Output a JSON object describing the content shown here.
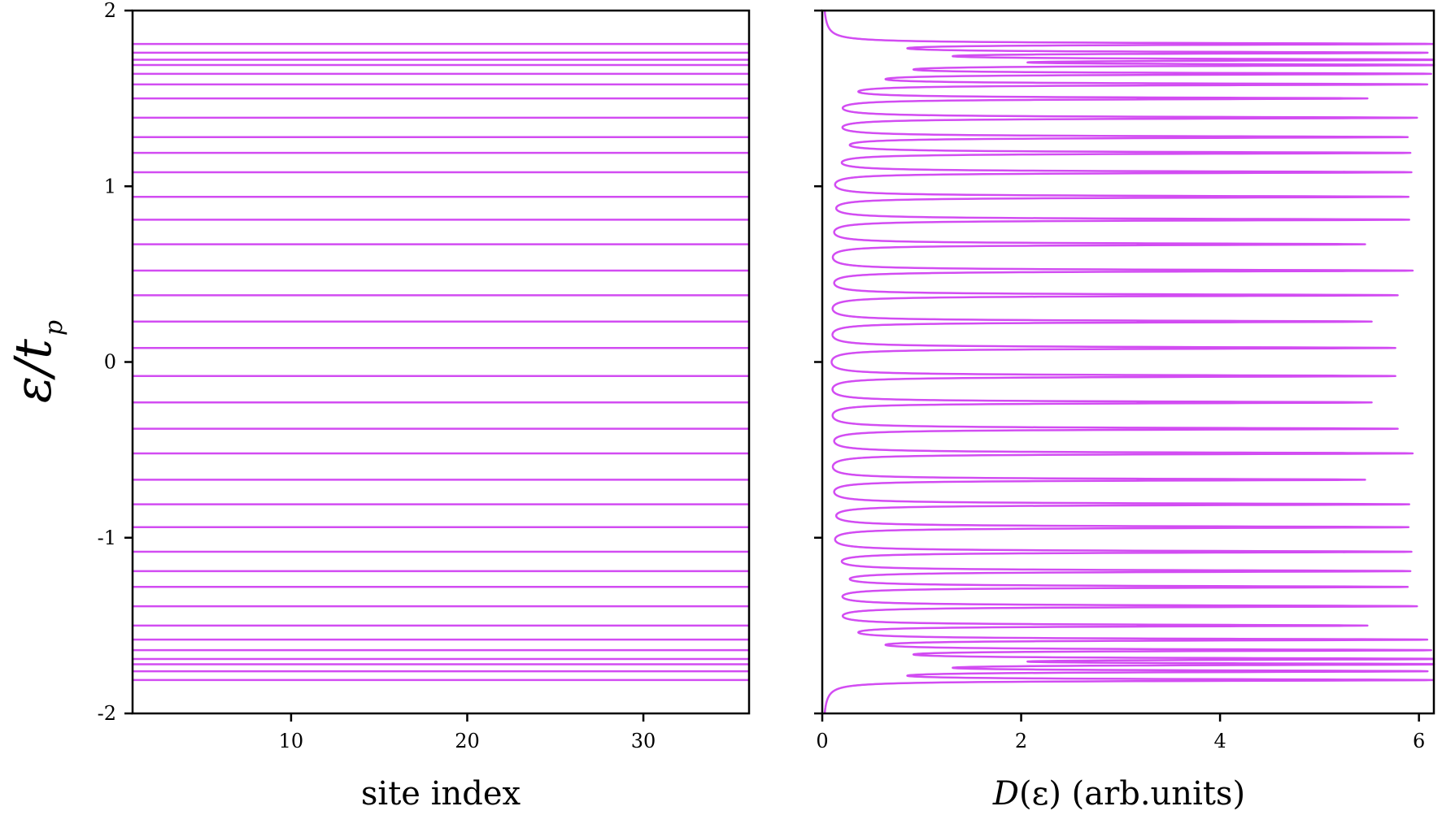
{
  "chart_data": [
    {
      "type": "line",
      "panel": "left",
      "xlabel": "site index",
      "ylabel_main": "ε/t",
      "ylabel_sub": "p",
      "xlim": [
        1,
        36
      ],
      "ylim": [
        -2,
        2
      ],
      "xticks": [
        "10",
        "20",
        "30"
      ],
      "xtick_values": [
        10,
        20,
        30
      ],
      "yticks": [
        "2",
        "1",
        "0",
        "-1",
        "-2"
      ],
      "ytick_values": [
        2,
        1,
        0,
        -1,
        -2
      ],
      "color": "#d24cf2",
      "energy_levels": [
        1.81,
        1.76,
        1.72,
        1.69,
        1.64,
        1.58,
        1.5,
        1.39,
        1.28,
        1.19,
        1.08,
        0.94,
        0.81,
        0.67,
        0.52,
        0.38,
        0.23,
        0.08,
        -0.08,
        -0.23,
        -0.38,
        -0.52,
        -0.67,
        -0.81,
        -0.94,
        -1.08,
        -1.19,
        -1.28,
        -1.39,
        -1.5,
        -1.58,
        -1.64,
        -1.69,
        -1.72,
        -1.76,
        -1.81
      ]
    },
    {
      "type": "line",
      "panel": "right",
      "xlabel_italic": "D",
      "xlabel_rest": "(ε) (arb.units)",
      "xlim": [
        0,
        6.15
      ],
      "ylim": [
        -2,
        2
      ],
      "xticks": [
        "0",
        "2",
        "4",
        "6"
      ],
      "xtick_values": [
        0,
        2,
        4,
        6
      ],
      "color": "#d24cf2",
      "broadening": 0.0065,
      "peaks": [
        {
          "e": 1.81,
          "h": 5.98
        },
        {
          "e": 1.76,
          "h": 5.75
        },
        {
          "e": 1.72,
          "h": 5.95
        },
        {
          "e": 1.69,
          "h": 5.9
        },
        {
          "e": 1.64,
          "h": 5.87
        },
        {
          "e": 1.58,
          "h": 5.92
        },
        {
          "e": 1.5,
          "h": 5.38
        },
        {
          "e": 1.39,
          "h": 5.91
        },
        {
          "e": 1.28,
          "h": 5.81
        },
        {
          "e": 1.19,
          "h": 5.84
        },
        {
          "e": 1.08,
          "h": 5.87
        },
        {
          "e": 0.94,
          "h": 5.85
        },
        {
          "e": 0.81,
          "h": 5.86
        },
        {
          "e": 0.67,
          "h": 5.42
        },
        {
          "e": 0.52,
          "h": 5.9
        },
        {
          "e": 0.38,
          "h": 5.75
        },
        {
          "e": 0.23,
          "h": 5.49
        },
        {
          "e": 0.08,
          "h": 5.73
        },
        {
          "e": -0.08,
          "h": 5.73
        },
        {
          "e": -0.23,
          "h": 5.49
        },
        {
          "e": -0.38,
          "h": 5.75
        },
        {
          "e": -0.52,
          "h": 5.9
        },
        {
          "e": -0.67,
          "h": 5.42
        },
        {
          "e": -0.81,
          "h": 5.86
        },
        {
          "e": -0.94,
          "h": 5.85
        },
        {
          "e": -1.08,
          "h": 5.87
        },
        {
          "e": -1.19,
          "h": 5.84
        },
        {
          "e": -1.28,
          "h": 5.81
        },
        {
          "e": -1.39,
          "h": 5.91
        },
        {
          "e": -1.5,
          "h": 5.38
        },
        {
          "e": -1.58,
          "h": 5.92
        },
        {
          "e": -1.64,
          "h": 5.87
        },
        {
          "e": -1.69,
          "h": 5.9
        },
        {
          "e": -1.72,
          "h": 5.95
        },
        {
          "e": -1.76,
          "h": 5.75
        },
        {
          "e": -1.81,
          "h": 5.98
        }
      ]
    }
  ]
}
